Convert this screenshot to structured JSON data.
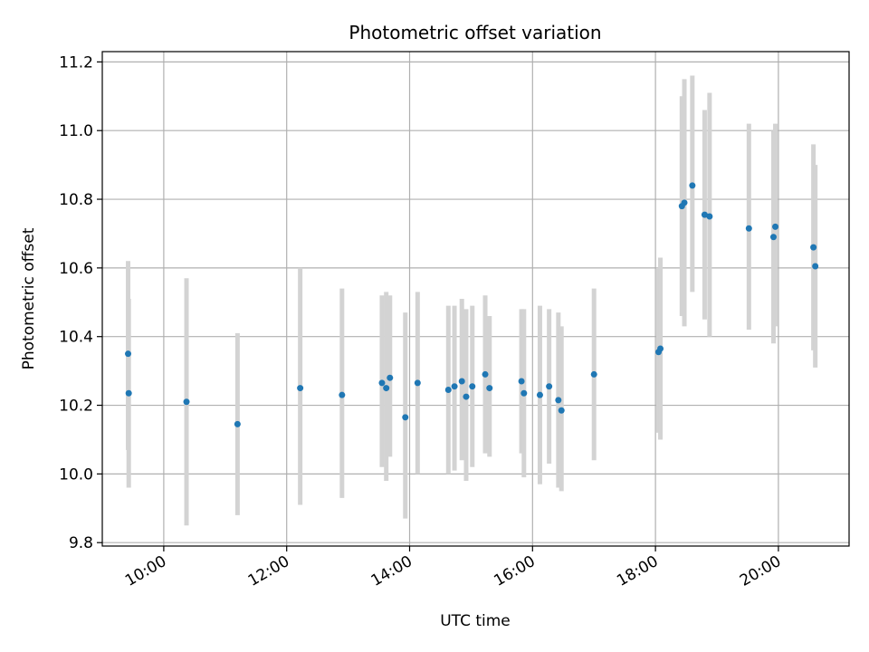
{
  "chart_data": {
    "type": "scatter",
    "title": "Photometric offset variation",
    "xlabel": "UTC time",
    "ylabel": "Photometric offset",
    "x_unit": "hours UTC",
    "xlim": [
      9.0,
      21.15
    ],
    "ylim": [
      9.79,
      11.23
    ],
    "x_ticks": [
      {
        "value": 10,
        "label": "10:00"
      },
      {
        "value": 12,
        "label": "12:00"
      },
      {
        "value": 14,
        "label": "14:00"
      },
      {
        "value": 16,
        "label": "16:00"
      },
      {
        "value": 18,
        "label": "18:00"
      },
      {
        "value": 20,
        "label": "20:00"
      }
    ],
    "y_ticks": [
      {
        "value": 9.8,
        "label": "9.8"
      },
      {
        "value": 10.0,
        "label": "10.0"
      },
      {
        "value": 10.2,
        "label": "10.2"
      },
      {
        "value": 10.4,
        "label": "10.4"
      },
      {
        "value": 10.6,
        "label": "10.6"
      },
      {
        "value": 10.8,
        "label": "10.8"
      },
      {
        "value": 11.0,
        "label": "11.0"
      },
      {
        "value": 11.2,
        "label": "11.2"
      }
    ],
    "grid": true,
    "point_color": "#1f77b4",
    "errorbar_color": "#d3d3d3",
    "points": [
      {
        "x": 9.42,
        "y": 10.35,
        "lo": 10.07,
        "hi": 10.62
      },
      {
        "x": 9.43,
        "y": 10.235,
        "lo": 9.96,
        "hi": 10.51
      },
      {
        "x": 10.37,
        "y": 10.21,
        "lo": 9.85,
        "hi": 10.57
      },
      {
        "x": 11.2,
        "y": 10.145,
        "lo": 9.88,
        "hi": 10.41
      },
      {
        "x": 12.22,
        "y": 10.25,
        "lo": 9.91,
        "hi": 10.6
      },
      {
        "x": 12.9,
        "y": 10.23,
        "lo": 9.93,
        "hi": 10.54
      },
      {
        "x": 13.55,
        "y": 10.265,
        "lo": 10.02,
        "hi": 10.52
      },
      {
        "x": 13.62,
        "y": 10.25,
        "lo": 9.98,
        "hi": 10.53
      },
      {
        "x": 13.68,
        "y": 10.28,
        "lo": 10.05,
        "hi": 10.52
      },
      {
        "x": 13.93,
        "y": 10.165,
        "lo": 9.87,
        "hi": 10.47
      },
      {
        "x": 14.13,
        "y": 10.265,
        "lo": 10.0,
        "hi": 10.53
      },
      {
        "x": 14.63,
        "y": 10.245,
        "lo": 10.0,
        "hi": 10.49
      },
      {
        "x": 14.73,
        "y": 10.255,
        "lo": 10.01,
        "hi": 10.49
      },
      {
        "x": 14.85,
        "y": 10.27,
        "lo": 10.04,
        "hi": 10.51
      },
      {
        "x": 14.92,
        "y": 10.225,
        "lo": 9.98,
        "hi": 10.48
      },
      {
        "x": 15.02,
        "y": 10.255,
        "lo": 10.02,
        "hi": 10.49
      },
      {
        "x": 15.23,
        "y": 10.29,
        "lo": 10.06,
        "hi": 10.52
      },
      {
        "x": 15.3,
        "y": 10.25,
        "lo": 10.05,
        "hi": 10.46
      },
      {
        "x": 15.82,
        "y": 10.27,
        "lo": 10.06,
        "hi": 10.48
      },
      {
        "x": 15.86,
        "y": 10.235,
        "lo": 9.99,
        "hi": 10.48
      },
      {
        "x": 16.12,
        "y": 10.23,
        "lo": 9.97,
        "hi": 10.49
      },
      {
        "x": 16.27,
        "y": 10.255,
        "lo": 10.03,
        "hi": 10.48
      },
      {
        "x": 16.42,
        "y": 10.215,
        "lo": 9.96,
        "hi": 10.47
      },
      {
        "x": 16.47,
        "y": 10.185,
        "lo": 9.95,
        "hi": 10.43
      },
      {
        "x": 17.0,
        "y": 10.29,
        "lo": 10.04,
        "hi": 10.54
      },
      {
        "x": 18.05,
        "y": 10.355,
        "lo": 10.12,
        "hi": 10.6
      },
      {
        "x": 18.08,
        "y": 10.365,
        "lo": 10.1,
        "hi": 10.63
      },
      {
        "x": 18.43,
        "y": 10.78,
        "lo": 10.46,
        "hi": 11.1
      },
      {
        "x": 18.47,
        "y": 10.79,
        "lo": 10.43,
        "hi": 11.15
      },
      {
        "x": 18.6,
        "y": 10.84,
        "lo": 10.53,
        "hi": 11.16
      },
      {
        "x": 18.8,
        "y": 10.755,
        "lo": 10.45,
        "hi": 11.06
      },
      {
        "x": 18.88,
        "y": 10.75,
        "lo": 10.4,
        "hi": 11.11
      },
      {
        "x": 19.52,
        "y": 10.715,
        "lo": 10.42,
        "hi": 11.02
      },
      {
        "x": 19.92,
        "y": 10.69,
        "lo": 10.38,
        "hi": 11.0
      },
      {
        "x": 19.95,
        "y": 10.72,
        "lo": 10.43,
        "hi": 11.02
      },
      {
        "x": 20.57,
        "y": 10.66,
        "lo": 10.36,
        "hi": 10.96
      },
      {
        "x": 20.6,
        "y": 10.605,
        "lo": 10.31,
        "hi": 10.9
      }
    ]
  }
}
